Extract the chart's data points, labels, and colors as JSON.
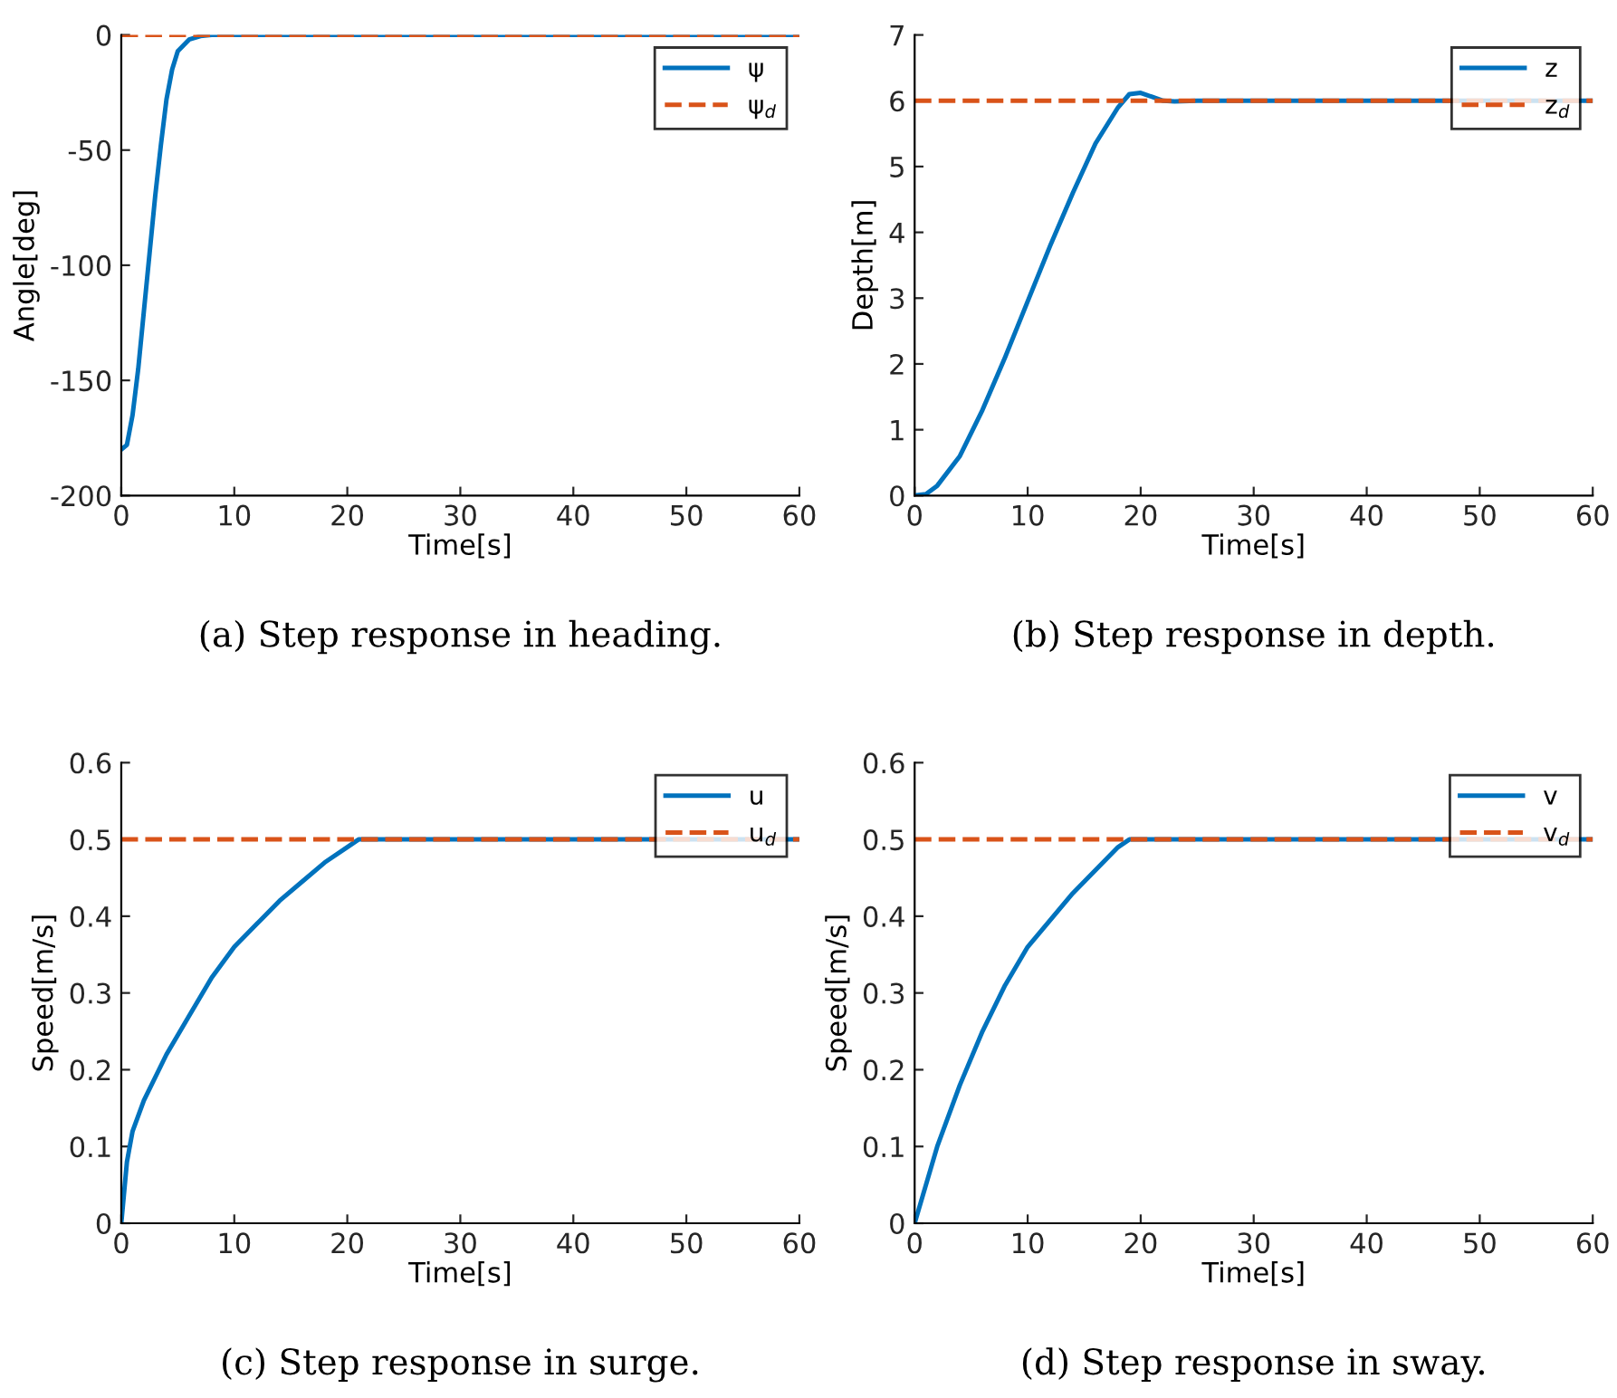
{
  "chart_data": [
    {
      "type": "line",
      "title": "(a) Step response in heading.",
      "xlabel": "Time[s]",
      "ylabel": "Angle[deg]",
      "xlim": [
        0,
        60
      ],
      "ylim": [
        -200,
        0
      ],
      "xticks": [
        0,
        10,
        20,
        30,
        40,
        50,
        60
      ],
      "yticks": [
        -200,
        -150,
        -100,
        -50,
        0
      ],
      "legend": "top right",
      "grid": false,
      "series": [
        {
          "name": "ψ",
          "color": "#0072bd",
          "line_style": "solid",
          "x": [
            0,
            0.5,
            1,
            1.5,
            2,
            2.5,
            3,
            3.5,
            4,
            4.5,
            5,
            6,
            7,
            8,
            60
          ],
          "values": [
            -180,
            -178,
            -165,
            -145,
            -120,
            -95,
            -70,
            -48,
            -28,
            -15,
            -7,
            -2,
            -0.5,
            0,
            0
          ]
        },
        {
          "name": "ψ$_{d}$",
          "color": "#d95319",
          "line_style": "dashed",
          "x": [
            0,
            60
          ],
          "values": [
            0,
            0
          ]
        }
      ]
    },
    {
      "type": "line",
      "title": "(b) Step response in depth.",
      "xlabel": "Time[s]",
      "ylabel": "Depth[m]",
      "xlim": [
        0,
        60
      ],
      "ylim": [
        0,
        7
      ],
      "xticks": [
        0,
        10,
        20,
        30,
        40,
        50,
        60
      ],
      "yticks": [
        0,
        1,
        2,
        3,
        4,
        5,
        6,
        7
      ],
      "legend": "top right",
      "grid": false,
      "series": [
        {
          "name": "z",
          "color": "#0072bd",
          "line_style": "solid",
          "x": [
            0,
            1,
            2,
            4,
            6,
            8,
            10,
            12,
            14,
            16,
            18,
            19,
            20,
            21,
            22,
            23,
            25,
            60
          ],
          "values": [
            0,
            0.02,
            0.15,
            0.6,
            1.3,
            2.1,
            2.95,
            3.8,
            4.6,
            5.35,
            5.9,
            6.1,
            6.12,
            6.06,
            6.0,
            5.99,
            6.0,
            6.0
          ]
        },
        {
          "name": "z$_{d}$",
          "color": "#d95319",
          "line_style": "dashed",
          "x": [
            0,
            60
          ],
          "values": [
            6,
            6
          ]
        }
      ]
    },
    {
      "type": "line",
      "title": "(c) Step response in surge.",
      "xlabel": "Time[s]",
      "ylabel": "Speed[m/s]",
      "xlim": [
        0,
        60
      ],
      "ylim": [
        0,
        0.6
      ],
      "xticks": [
        0,
        10,
        20,
        30,
        40,
        50,
        60
      ],
      "yticks": [
        0,
        0.1,
        0.2,
        0.3,
        0.4,
        0.5,
        0.6
      ],
      "legend": "top right",
      "grid": false,
      "series": [
        {
          "name": "u",
          "color": "#0072bd",
          "line_style": "solid",
          "x": [
            0,
            0.5,
            1,
            2,
            4,
            6,
            8,
            10,
            12,
            14,
            16,
            18,
            20,
            21,
            60
          ],
          "values": [
            0,
            0.08,
            0.12,
            0.16,
            0.22,
            0.27,
            0.32,
            0.36,
            0.39,
            0.42,
            0.445,
            0.47,
            0.49,
            0.5,
            0.5
          ]
        },
        {
          "name": "u$_{d}$",
          "color": "#d95319",
          "line_style": "dashed",
          "x": [
            0,
            60
          ],
          "values": [
            0.5,
            0.5
          ]
        }
      ]
    },
    {
      "type": "line",
      "title": "(d) Step response in sway.",
      "xlabel": "Time[s]",
      "ylabel": "Speed[m/s]",
      "xlim": [
        0,
        60
      ],
      "ylim": [
        0,
        0.6
      ],
      "xticks": [
        0,
        10,
        20,
        30,
        40,
        50,
        60
      ],
      "yticks": [
        0,
        0.1,
        0.2,
        0.3,
        0.4,
        0.5,
        0.6
      ],
      "legend": "top right",
      "grid": false,
      "series": [
        {
          "name": "v",
          "color": "#0072bd",
          "line_style": "solid",
          "x": [
            0,
            1,
            2,
            4,
            6,
            8,
            10,
            12,
            14,
            16,
            18,
            19,
            60
          ],
          "values": [
            0,
            0.05,
            0.1,
            0.18,
            0.25,
            0.31,
            0.36,
            0.395,
            0.43,
            0.46,
            0.49,
            0.5,
            0.5
          ]
        },
        {
          "name": "v$_{d}$",
          "color": "#d95319",
          "line_style": "dashed",
          "x": [
            0,
            60
          ],
          "values": [
            0.5,
            0.5
          ]
        }
      ]
    }
  ]
}
